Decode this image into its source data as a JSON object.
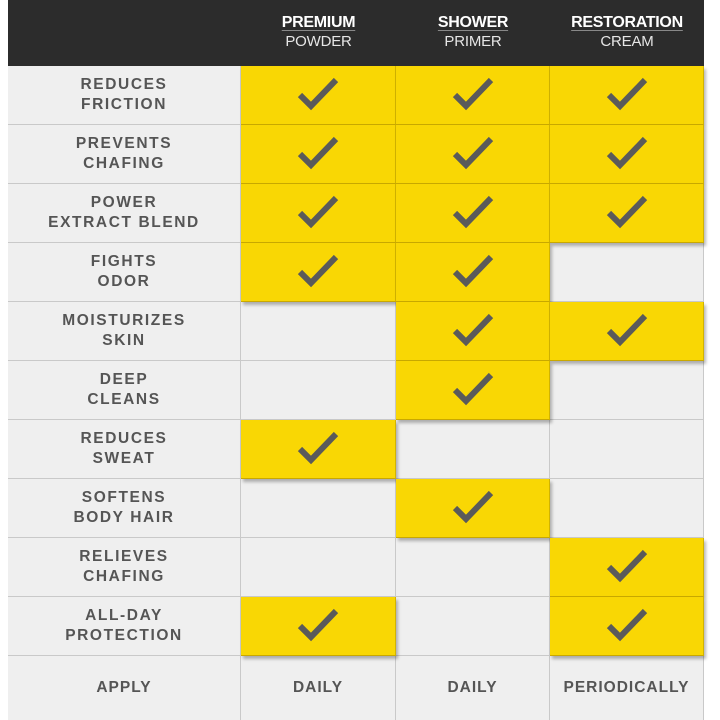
{
  "columns": [
    {
      "line1": "PREMIUM",
      "line2": "POWDER"
    },
    {
      "line1": "SHOWER",
      "line2": "PRIMER"
    },
    {
      "line1": "RESTORATION",
      "line2": "CREAM"
    }
  ],
  "rows": [
    {
      "label": "REDUCES\nFRICTION",
      "checks": [
        true,
        true,
        true
      ]
    },
    {
      "label": "PREVENTS\nCHAFING",
      "checks": [
        true,
        true,
        true
      ]
    },
    {
      "label": "POWER\nEXTRACT BLEND",
      "checks": [
        true,
        true,
        true
      ]
    },
    {
      "label": "FIGHTS\nODOR",
      "checks": [
        true,
        true,
        false
      ]
    },
    {
      "label": "MOISTURIZES\nSKIN",
      "checks": [
        false,
        true,
        true
      ]
    },
    {
      "label": "DEEP\nCLEANS",
      "checks": [
        false,
        true,
        false
      ]
    },
    {
      "label": "REDUCES\nSWEAT",
      "checks": [
        true,
        false,
        false
      ]
    },
    {
      "label": "SOFTENS\nBODY HAIR",
      "checks": [
        false,
        true,
        false
      ]
    },
    {
      "label": "RELIEVES\nCHAFING",
      "checks": [
        false,
        false,
        true
      ]
    },
    {
      "label": "ALL-DAY\nPROTECTION",
      "checks": [
        true,
        false,
        true
      ]
    }
  ],
  "apply": {
    "label": "APPLY",
    "values": [
      "DAILY",
      "DAILY",
      "PERIODICALLY"
    ]
  },
  "colors": {
    "header_bg": "#2c2c2c",
    "highlight": "#f9d704",
    "cell_bg": "#efefef",
    "check": "#5a5a5a",
    "label_text": "#555555"
  },
  "icons": {
    "check": "checkmark-icon"
  }
}
